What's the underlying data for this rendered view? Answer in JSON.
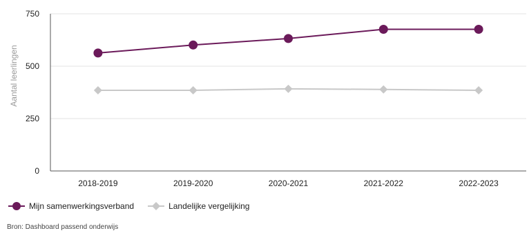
{
  "chart_data": {
    "type": "line",
    "categories": [
      "2018-2019",
      "2019-2020",
      "2020-2021",
      "2021-2022",
      "2022-2023"
    ],
    "series": [
      {
        "name": "Mijn samenwerkingsverband",
        "values": [
          563,
          601,
          632,
          676,
          676
        ],
        "color": "#6b1a5a",
        "marker": "circle"
      },
      {
        "name": "Landelijke vergelijking",
        "values": [
          385,
          385,
          392,
          389,
          385
        ],
        "color": "#c8c8c8",
        "marker": "diamond"
      }
    ],
    "ylabel": "Aantal leerlingen",
    "yticks": [
      0,
      250,
      500,
      750
    ],
    "ylim": [
      0,
      750
    ],
    "grid": true,
    "legend": "bottom-left"
  },
  "source_text": "Bron: Dashboard passend onderwijs"
}
